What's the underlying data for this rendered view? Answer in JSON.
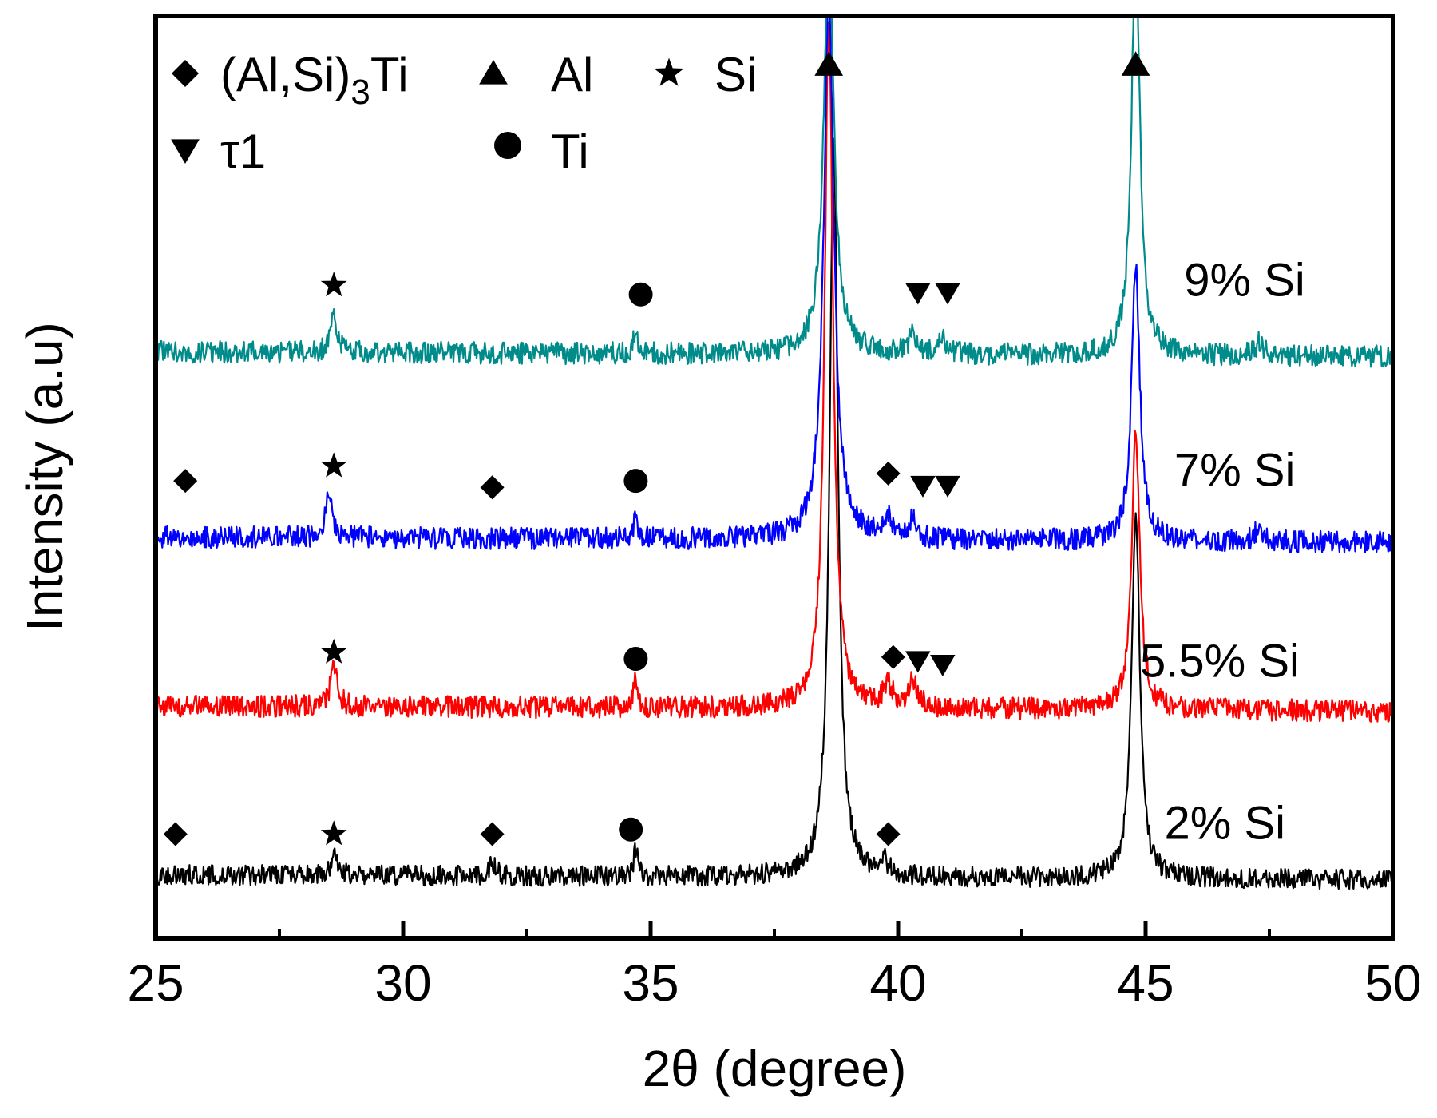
{
  "chart_data": {
    "type": "line",
    "title": "",
    "xlabel": "2θ (degree)",
    "ylabel": "Intensity (a.u)",
    "xlim": [
      25,
      50
    ],
    "ylim": [
      0,
      100
    ],
    "xticks": [
      25,
      30,
      35,
      40,
      45,
      50
    ],
    "xtick_labels": [
      "25",
      "30",
      "35",
      "40",
      "45",
      "50"
    ],
    "grid": false,
    "legend_position": "top-left",
    "legend": [
      {
        "marker": "diamond",
        "label": "(Al,Si)",
        "sub": "3",
        "suffix": "Ti"
      },
      {
        "marker": "triangle-up",
        "label": "Al",
        "sub": "",
        "suffix": ""
      },
      {
        "marker": "star",
        "label": "Si",
        "sub": "",
        "suffix": ""
      },
      {
        "marker": "triangle-down",
        "label": "τ1",
        "sub": "",
        "suffix": ""
      },
      {
        "marker": "circle",
        "label": "Ti",
        "sub": "",
        "suffix": ""
      }
    ],
    "series": [
      {
        "name": "2% Si",
        "color": "#000000",
        "baseline": 6.9,
        "noise": 1.1,
        "peaks": [
          {
            "x": 28.6,
            "h": 2.0,
            "w": 0.08
          },
          {
            "x": 31.8,
            "h": 1.5,
            "w": 0.08
          },
          {
            "x": 34.7,
            "h": 3.0,
            "w": 0.05
          },
          {
            "x": 38.7,
            "h": 80,
            "w": 0.1
          },
          {
            "x": 39.7,
            "h": 1.5,
            "w": 0.1
          },
          {
            "x": 44.8,
            "h": 40,
            "w": 0.1
          }
        ],
        "markers": [
          {
            "type": "diamond",
            "x": 25.4,
            "y": 11.3
          },
          {
            "type": "star",
            "x": 28.6,
            "y": 11.3
          },
          {
            "type": "diamond",
            "x": 31.8,
            "y": 11.3
          },
          {
            "type": "circle",
            "x": 34.6,
            "y": 11.8
          },
          {
            "type": "diamond",
            "x": 39.8,
            "y": 11.3
          }
        ]
      },
      {
        "name": "5.5% Si",
        "color": "#ff0000",
        "baseline": 25.2,
        "noise": 1.2,
        "peaks": [
          {
            "x": 28.6,
            "h": 4.5,
            "w": 0.08
          },
          {
            "x": 34.7,
            "h": 3.5,
            "w": 0.05
          },
          {
            "x": 38.6,
            "h": 75,
            "w": 0.1
          },
          {
            "x": 39.8,
            "h": 2.5,
            "w": 0.1
          },
          {
            "x": 40.3,
            "h": 3.0,
            "w": 0.1
          },
          {
            "x": 44.8,
            "h": 30,
            "w": 0.1
          }
        ],
        "markers": [
          {
            "type": "star",
            "x": 28.6,
            "y": 31.0
          },
          {
            "type": "circle",
            "x": 34.7,
            "y": 30.3
          },
          {
            "type": "diamond",
            "x": 39.9,
            "y": 30.5
          },
          {
            "type": "triangle-down",
            "x": 40.4,
            "y": 30.1
          },
          {
            "type": "triangle-down",
            "x": 40.9,
            "y": 29.7
          }
        ]
      },
      {
        "name": "7% Si",
        "color": "#0000ff",
        "baseline": 43.5,
        "noise": 1.2,
        "peaks": [
          {
            "x": 28.5,
            "h": 5.0,
            "w": 0.08
          },
          {
            "x": 34.7,
            "h": 2.5,
            "w": 0.05
          },
          {
            "x": 38.6,
            "h": 60,
            "w": 0.12
          },
          {
            "x": 39.8,
            "h": 2.0,
            "w": 0.1
          },
          {
            "x": 40.3,
            "h": 2.0,
            "w": 0.1
          },
          {
            "x": 44.8,
            "h": 30,
            "w": 0.1
          },
          {
            "x": 47.3,
            "h": 1.5,
            "w": 0.1
          }
        ],
        "markers": [
          {
            "type": "diamond",
            "x": 25.6,
            "y": 49.6
          },
          {
            "type": "star",
            "x": 28.6,
            "y": 51.2
          },
          {
            "type": "diamond",
            "x": 31.8,
            "y": 48.9
          },
          {
            "type": "circle",
            "x": 34.7,
            "y": 49.6
          },
          {
            "type": "diamond",
            "x": 39.8,
            "y": 50.4
          },
          {
            "type": "triangle-down",
            "x": 40.5,
            "y": 49.1
          },
          {
            "type": "triangle-down",
            "x": 41.0,
            "y": 49.1
          }
        ]
      },
      {
        "name": "9% Si",
        "color": "#008b8b",
        "baseline": 63.6,
        "noise": 1.2,
        "peaks": [
          {
            "x": 28.6,
            "h": 4.0,
            "w": 0.08
          },
          {
            "x": 34.7,
            "h": 2.5,
            "w": 0.05
          },
          {
            "x": 38.6,
            "h": 45,
            "w": 0.12
          },
          {
            "x": 40.3,
            "h": 2.0,
            "w": 0.1
          },
          {
            "x": 40.9,
            "h": 1.5,
            "w": 0.1
          },
          {
            "x": 44.8,
            "h": 45,
            "w": 0.1
          },
          {
            "x": 47.3,
            "h": 1.5,
            "w": 0.1
          }
        ],
        "markers": [
          {
            "type": "star",
            "x": 28.6,
            "y": 70.8
          },
          {
            "type": "circle",
            "x": 34.8,
            "y": 69.8
          },
          {
            "type": "triangle-down",
            "x": 40.4,
            "y": 70.0
          },
          {
            "type": "triangle-down",
            "x": 41.0,
            "y": 70.0
          }
        ]
      }
    ],
    "series_labels": [
      {
        "text": "9% Si",
        "x": 47.0,
        "y": 71.4
      },
      {
        "text": "7% Si",
        "x": 46.8,
        "y": 50.8
      },
      {
        "text": "5.5% Si",
        "x": 46.5,
        "y": 30.1
      },
      {
        "text": "2% Si",
        "x": 46.6,
        "y": 12.5
      }
    ],
    "peak_top_markers": [
      {
        "type": "triangle-up",
        "x": 38.6,
        "y": 94.7
      },
      {
        "type": "triangle-up",
        "x": 44.8,
        "y": 94.7
      }
    ]
  }
}
